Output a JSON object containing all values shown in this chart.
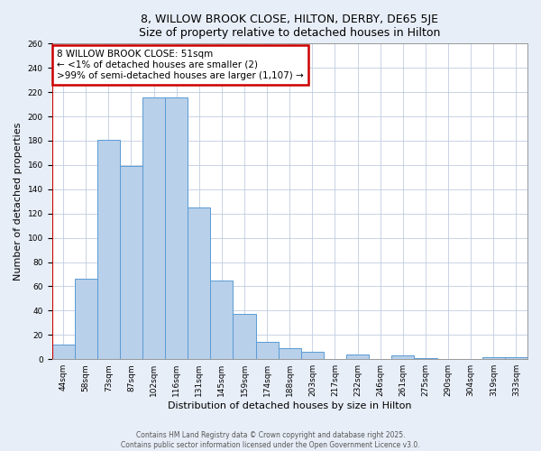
{
  "title": "8, WILLOW BROOK CLOSE, HILTON, DERBY, DE65 5JE",
  "subtitle": "Size of property relative to detached houses in Hilton",
  "xlabel": "Distribution of detached houses by size in Hilton",
  "ylabel": "Number of detached properties",
  "bar_labels": [
    "44sqm",
    "58sqm",
    "73sqm",
    "87sqm",
    "102sqm",
    "116sqm",
    "131sqm",
    "145sqm",
    "159sqm",
    "174sqm",
    "188sqm",
    "203sqm",
    "217sqm",
    "232sqm",
    "246sqm",
    "261sqm",
    "275sqm",
    "290sqm",
    "304sqm",
    "319sqm",
    "333sqm"
  ],
  "bar_values": [
    12,
    66,
    181,
    159,
    216,
    216,
    125,
    65,
    37,
    14,
    9,
    6,
    0,
    4,
    0,
    3,
    1,
    0,
    0,
    2,
    2
  ],
  "bar_color": "#b8d0ea",
  "bar_edge_color": "#5b9bd5",
  "highlight_color": "#cc0000",
  "annotation_text": "8 WILLOW BROOK CLOSE: 51sqm\n← <1% of detached houses are smaller (2)\n>99% of semi-detached houses are larger (1,107) →",
  "annotation_box_color": "#ffffff",
  "annotation_box_edge_color": "#cc0000",
  "ylim": [
    0,
    260
  ],
  "yticks": [
    0,
    20,
    40,
    60,
    80,
    100,
    120,
    140,
    160,
    180,
    200,
    220,
    240,
    260
  ],
  "footer_line1": "Contains HM Land Registry data © Crown copyright and database right 2025.",
  "footer_line2": "Contains public sector information licensed under the Open Government Licence v3.0.",
  "fig_bg_color": "#e8eef8",
  "plot_bg_color": "#ffffff",
  "grid_color": "#c0cce0"
}
